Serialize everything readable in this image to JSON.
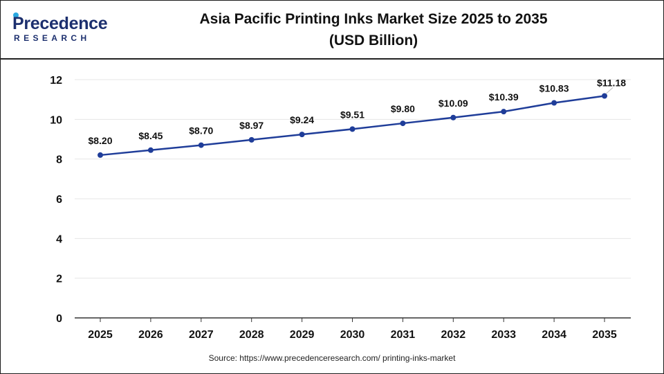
{
  "brand": {
    "name": "Precedence",
    "sub": "RESEARCH"
  },
  "title_line1": "Asia Pacific Printing Inks Market Size 2025 to 2035",
  "title_line2": "(USD Billion)",
  "source": "Source: https://www.precedenceresearch.com/ printing-inks-market",
  "colors": {
    "line": "#1f3d99",
    "grid": "#e6e6e6",
    "axis": "#333333",
    "brand": "#1c2f6e",
    "brand_accent": "#2aa8e0"
  },
  "chart_data": {
    "type": "line",
    "title": "Asia Pacific Printing Inks Market Size 2025 to 2035 (USD Billion)",
    "xlabel": "",
    "ylabel": "",
    "categories": [
      "2025",
      "2026",
      "2027",
      "2028",
      "2029",
      "2030",
      "2031",
      "2032",
      "2033",
      "2034",
      "2035"
    ],
    "values": [
      8.2,
      8.45,
      8.7,
      8.97,
      9.24,
      9.51,
      9.8,
      10.09,
      10.39,
      10.83,
      11.18
    ],
    "data_labels": [
      "$8.20",
      "$8.45",
      "$8.70",
      "$8.97",
      "$9.24",
      "$9.51",
      "$9.80",
      "$10.09",
      "$10.39",
      "$10.83",
      "$11.18"
    ],
    "ylim": [
      0,
      12
    ],
    "yticks": [
      0,
      2,
      4,
      6,
      8,
      10,
      12
    ],
    "grid": true,
    "legend": "none"
  }
}
